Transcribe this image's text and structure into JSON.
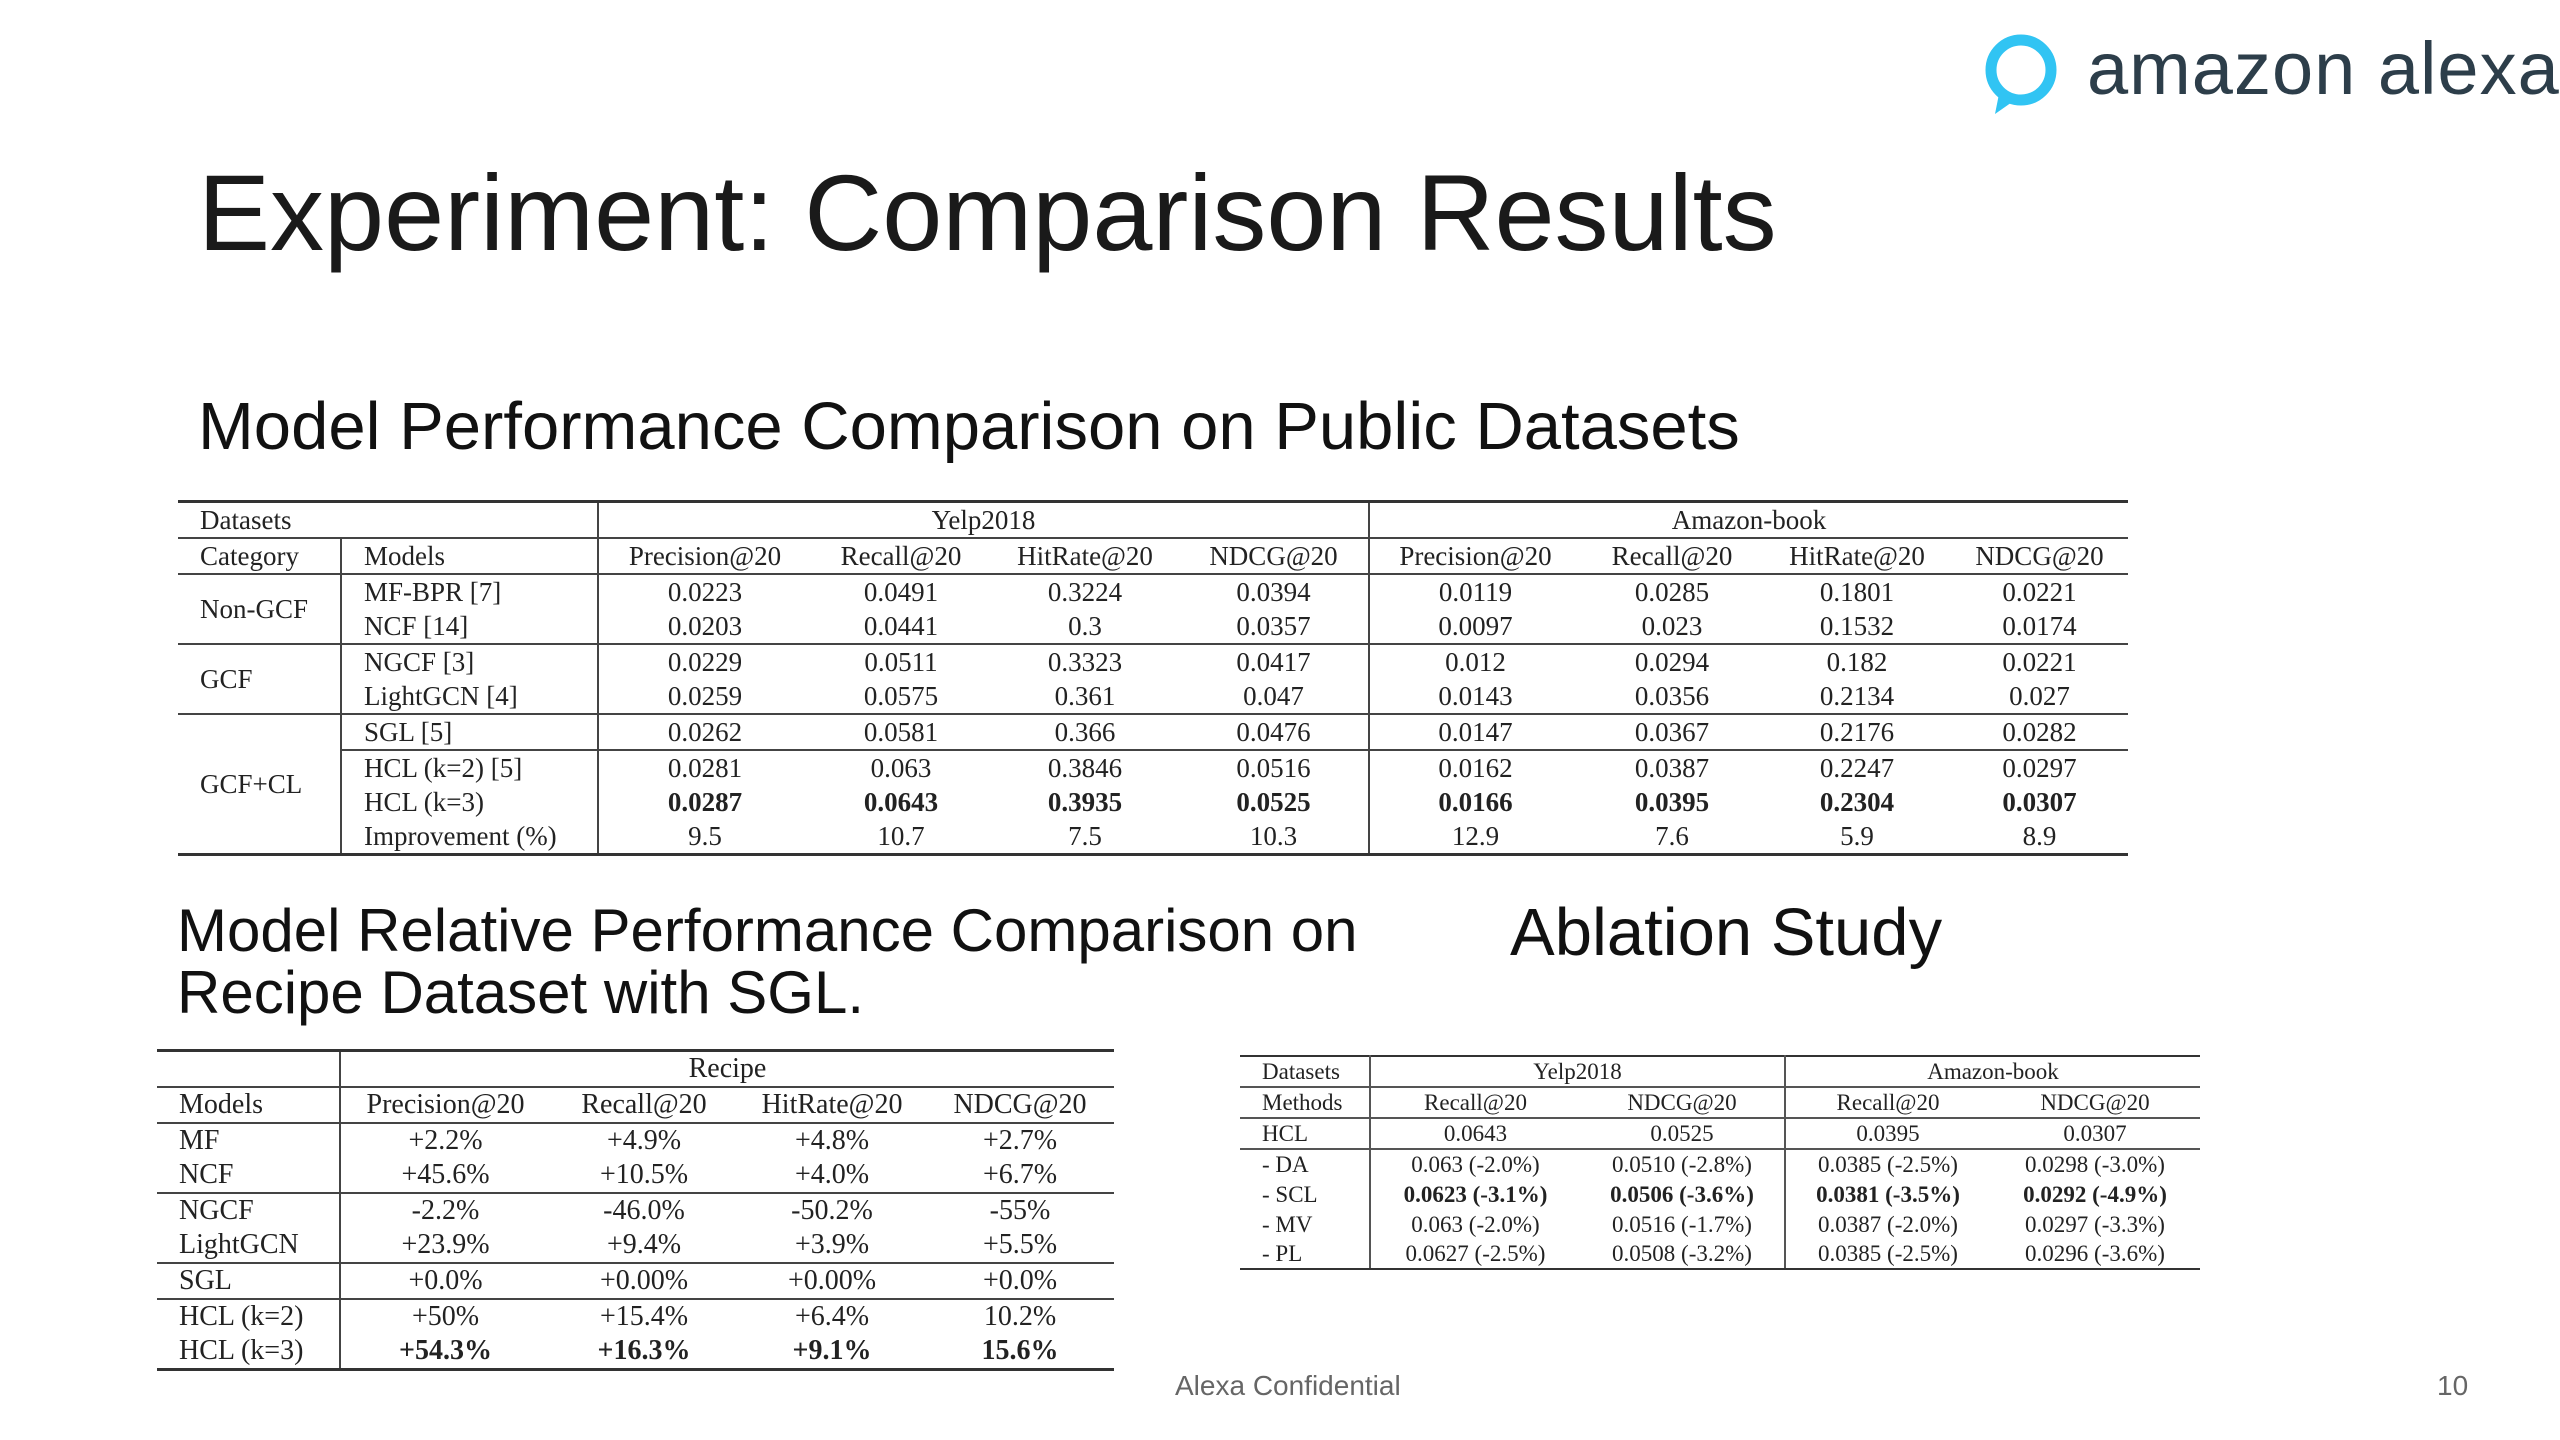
{
  "logo": {
    "text": "amazon alexa",
    "ring_color": "#31C4F3"
  },
  "title": "Experiment: Comparison Results",
  "headings": {
    "public": "Model Performance Comparison on Public Datasets",
    "recipe": "Model Relative Performance Comparison on Recipe Dataset with SGL.",
    "ablation": "Ablation Study"
  },
  "footer": {
    "confidential": "Alexa Confidential",
    "page": "10"
  },
  "main_table": {
    "datasets_label": "Datasets",
    "yelp_label": "Yelp2018",
    "amazon_label": "Amazon-book",
    "category_label": "Category",
    "models_label": "Models",
    "metrics": [
      "Precision@20",
      "Recall@20",
      "HitRate@20",
      "NDCG@20",
      "Precision@20",
      "Recall@20",
      "HitRate@20",
      "NDCG@20"
    ],
    "groups": [
      "Non-GCF",
      "GCF",
      "GCF+CL"
    ],
    "rows": [
      {
        "model": "MF-BPR [7]",
        "values": [
          "0.0223",
          "0.0491",
          "0.3224",
          "0.0394",
          "0.0119",
          "0.0285",
          "0.1801",
          "0.0221"
        ]
      },
      {
        "model": "NCF [14]",
        "values": [
          "0.0203",
          "0.0441",
          "0.3",
          "0.0357",
          "0.0097",
          "0.023",
          "0.1532",
          "0.0174"
        ]
      },
      {
        "model": "NGCF [3]",
        "values": [
          "0.0229",
          "0.0511",
          "0.3323",
          "0.0417",
          "0.012",
          "0.0294",
          "0.182",
          "0.0221"
        ]
      },
      {
        "model": "LightGCN [4]",
        "values": [
          "0.0259",
          "0.0575",
          "0.361",
          "0.047",
          "0.0143",
          "0.0356",
          "0.2134",
          "0.027"
        ]
      },
      {
        "model": "SGL [5]",
        "values": [
          "0.0262",
          "0.0581",
          "0.366",
          "0.0476",
          "0.0147",
          "0.0367",
          "0.2176",
          "0.0282"
        ]
      },
      {
        "model": "HCL (k=2) [5]",
        "values": [
          "0.0281",
          "0.063",
          "0.3846",
          "0.0516",
          "0.0162",
          "0.0387",
          "0.2247",
          "0.0297"
        ]
      },
      {
        "model": "HCL (k=3)",
        "values": [
          "0.0287",
          "0.0643",
          "0.3935",
          "0.0525",
          "0.0166",
          "0.0395",
          "0.2304",
          "0.0307"
        ]
      },
      {
        "model": "Improvement (%)",
        "values": [
          "9.5",
          "10.7",
          "7.5",
          "10.3",
          "12.9",
          "7.6",
          "5.9",
          "8.9"
        ]
      }
    ]
  },
  "recipe_table": {
    "dataset_label": "Recipe",
    "models_label": "Models",
    "metrics": [
      "Precision@20",
      "Recall@20",
      "HitRate@20",
      "NDCG@20"
    ],
    "rows": [
      {
        "model": "MF",
        "values": [
          "+2.2%",
          "+4.9%",
          "+4.8%",
          "+2.7%"
        ]
      },
      {
        "model": "NCF",
        "values": [
          "+45.6%",
          "+10.5%",
          "+4.0%",
          "+6.7%"
        ]
      },
      {
        "model": "NGCF",
        "values": [
          "-2.2%",
          "-46.0%",
          "-50.2%",
          "-55%"
        ]
      },
      {
        "model": "LightGCN",
        "values": [
          "+23.9%",
          "+9.4%",
          "+3.9%",
          "+5.5%"
        ]
      },
      {
        "model": "SGL",
        "values": [
          "+0.0%",
          "+0.00%",
          "+0.00%",
          "+0.0%"
        ]
      },
      {
        "model": "HCL (k=2)",
        "values": [
          "+50%",
          "+15.4%",
          "+6.4%",
          "10.2%"
        ]
      },
      {
        "model": "HCL (k=3)",
        "values": [
          "+54.3%",
          "+16.3%",
          "+9.1%",
          "15.6%"
        ]
      }
    ]
  },
  "ablation_table": {
    "datasets_label": "Datasets",
    "methods_label": "Methods",
    "yelp_label": "Yelp2018",
    "amazon_label": "Amazon-book",
    "metrics": [
      "Recall@20",
      "NDCG@20",
      "Recall@20",
      "NDCG@20"
    ],
    "rows": [
      {
        "method": "HCL",
        "values": [
          "0.0643",
          "0.0525",
          "0.0395",
          "0.0307"
        ]
      },
      {
        "method": "- DA",
        "values": [
          "0.063 (-2.0%)",
          "0.0510 (-2.8%)",
          "0.0385 (-2.5%)",
          "0.0298 (-3.0%)"
        ]
      },
      {
        "method": "- SCL",
        "values": [
          "0.0623 (-3.1%)",
          "0.0506 (-3.6%)",
          "0.0381 (-3.5%)",
          "0.0292 (-4.9%)"
        ]
      },
      {
        "method": "- MV",
        "values": [
          "0.063 (-2.0%)",
          "0.0516 (-1.7%)",
          "0.0387 (-2.0%)",
          "0.0297 (-3.3%)"
        ]
      },
      {
        "method": "- PL",
        "values": [
          "0.0627 (-2.5%)",
          "0.0508 (-3.2%)",
          "0.0385 (-2.5%)",
          "0.0296 (-3.6%)"
        ]
      }
    ]
  }
}
